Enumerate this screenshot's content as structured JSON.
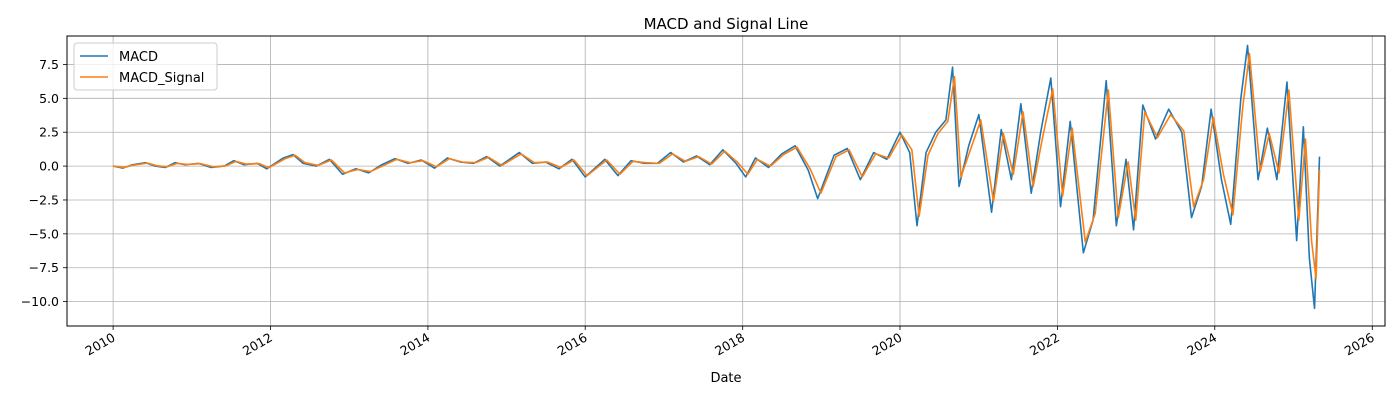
{
  "chart_data": {
    "type": "line",
    "title": "MACD and Signal Line",
    "xlabel": "Date",
    "ylabel": "",
    "xlim": [
      "2009-06-01",
      "2026-03-01"
    ],
    "ylim": [
      -11.8,
      9.6
    ],
    "grid": true,
    "legend": "top-left",
    "x_ticks": [
      "2010",
      "2012",
      "2014",
      "2016",
      "2018",
      "2020",
      "2022",
      "2024",
      "2026"
    ],
    "y_ticks": [
      7.5,
      5.0,
      2.5,
      0.0,
      -2.5,
      -5.0,
      -7.5,
      -10.0
    ],
    "y_tick_labels": [
      "7.5",
      "5.0",
      "2.5",
      "0.0",
      "−2.5",
      "−5.0",
      "−7.5",
      "−10.0"
    ],
    "series": [
      {
        "name": "MACD",
        "color": "#1f77b4",
        "points": [
          [
            "2010-01-01",
            0.0
          ],
          [
            "2010-02-15",
            -0.15
          ],
          [
            "2010-04-01",
            0.1
          ],
          [
            "2010-06-01",
            0.25
          ],
          [
            "2010-07-15",
            0.0
          ],
          [
            "2010-09-01",
            -0.1
          ],
          [
            "2010-10-15",
            0.25
          ],
          [
            "2010-12-01",
            0.1
          ],
          [
            "2011-02-01",
            0.2
          ],
          [
            "2011-04-01",
            -0.1
          ],
          [
            "2011-06-01",
            0.0
          ],
          [
            "2011-07-15",
            0.4
          ],
          [
            "2011-09-01",
            0.1
          ],
          [
            "2011-11-01",
            0.2
          ],
          [
            "2011-12-15",
            -0.2
          ],
          [
            "2012-03-01",
            0.6
          ],
          [
            "2012-04-15",
            0.85
          ],
          [
            "2012-06-01",
            0.2
          ],
          [
            "2012-08-01",
            0.0
          ],
          [
            "2012-10-01",
            0.5
          ],
          [
            "2012-12-01",
            -0.6
          ],
          [
            "2013-02-01",
            -0.2
          ],
          [
            "2013-04-01",
            -0.5
          ],
          [
            "2013-06-01",
            0.1
          ],
          [
            "2013-08-01",
            0.55
          ],
          [
            "2013-10-01",
            0.2
          ],
          [
            "2013-12-01",
            0.45
          ],
          [
            "2014-02-01",
            -0.15
          ],
          [
            "2014-04-01",
            0.6
          ],
          [
            "2014-06-01",
            0.3
          ],
          [
            "2014-08-01",
            0.2
          ],
          [
            "2014-10-01",
            0.7
          ],
          [
            "2014-12-01",
            0.0
          ],
          [
            "2015-03-01",
            1.0
          ],
          [
            "2015-05-01",
            0.2
          ],
          [
            "2015-07-01",
            0.3
          ],
          [
            "2015-09-01",
            -0.2
          ],
          [
            "2015-11-01",
            0.5
          ],
          [
            "2016-01-01",
            -0.8
          ],
          [
            "2016-04-01",
            0.5
          ],
          [
            "2016-06-01",
            -0.7
          ],
          [
            "2016-08-01",
            0.4
          ],
          [
            "2016-10-01",
            0.2
          ],
          [
            "2016-12-01",
            0.2
          ],
          [
            "2017-02-01",
            1.0
          ],
          [
            "2017-04-01",
            0.3
          ],
          [
            "2017-06-01",
            0.75
          ],
          [
            "2017-08-01",
            0.1
          ],
          [
            "2017-10-01",
            1.2
          ],
          [
            "2017-12-01",
            0.2
          ],
          [
            "2018-01-15",
            -0.8
          ],
          [
            "2018-03-01",
            0.6
          ],
          [
            "2018-05-01",
            -0.1
          ],
          [
            "2018-07-01",
            0.9
          ],
          [
            "2018-09-01",
            1.5
          ],
          [
            "2018-11-01",
            -0.3
          ],
          [
            "2018-12-15",
            -2.4
          ],
          [
            "2019-03-01",
            0.8
          ],
          [
            "2019-05-01",
            1.3
          ],
          [
            "2019-07-01",
            -1.0
          ],
          [
            "2019-09-01",
            1.0
          ],
          [
            "2019-11-01",
            0.5
          ],
          [
            "2020-01-01",
            2.5
          ],
          [
            "2020-02-15",
            1.0
          ],
          [
            "2020-03-20",
            -4.4
          ],
          [
            "2020-05-01",
            1.0
          ],
          [
            "2020-06-15",
            2.5
          ],
          [
            "2020-08-01",
            3.4
          ],
          [
            "2020-09-01",
            7.3
          ],
          [
            "2020-10-01",
            -1.5
          ],
          [
            "2020-11-15",
            1.5
          ],
          [
            "2021-01-01",
            3.8
          ],
          [
            "2021-03-01",
            -3.4
          ],
          [
            "2021-04-15",
            2.7
          ],
          [
            "2021-06-01",
            -1.0
          ],
          [
            "2021-07-15",
            4.6
          ],
          [
            "2021-09-01",
            -2.0
          ],
          [
            "2021-10-15",
            2.5
          ],
          [
            "2021-12-01",
            6.5
          ],
          [
            "2022-01-15",
            -3.0
          ],
          [
            "2022-03-01",
            3.3
          ],
          [
            "2022-05-01",
            -6.4
          ],
          [
            "2022-06-15",
            -4.0
          ],
          [
            "2022-08-15",
            6.3
          ],
          [
            "2022-10-01",
            -4.4
          ],
          [
            "2022-11-15",
            0.5
          ],
          [
            "2022-12-20",
            -4.7
          ],
          [
            "2023-02-01",
            4.5
          ],
          [
            "2023-04-01",
            2.0
          ],
          [
            "2023-06-01",
            4.2
          ],
          [
            "2023-08-01",
            2.5
          ],
          [
            "2023-09-15",
            -3.8
          ],
          [
            "2023-11-01",
            -1.5
          ],
          [
            "2023-12-15",
            4.2
          ],
          [
            "2024-02-01",
            -1.0
          ],
          [
            "2024-03-15",
            -4.3
          ],
          [
            "2024-05-01",
            5.0
          ],
          [
            "2024-06-01",
            8.9
          ],
          [
            "2024-07-20",
            -1.0
          ],
          [
            "2024-09-01",
            2.8
          ],
          [
            "2024-10-15",
            -1.0
          ],
          [
            "2024-12-01",
            6.2
          ],
          [
            "2025-01-15",
            -5.5
          ],
          [
            "2025-02-15",
            2.9
          ],
          [
            "2025-03-15",
            -6.8
          ],
          [
            "2025-04-08",
            -10.5
          ],
          [
            "2025-05-01",
            0.7
          ]
        ]
      },
      {
        "name": "MACD_Signal",
        "color": "#ff7f0e",
        "points": [
          [
            "2010-01-01",
            0.0
          ],
          [
            "2010-02-20",
            -0.1
          ],
          [
            "2010-04-10",
            0.08
          ],
          [
            "2010-06-10",
            0.22
          ],
          [
            "2010-07-25",
            0.02
          ],
          [
            "2010-09-10",
            -0.05
          ],
          [
            "2010-10-25",
            0.2
          ],
          [
            "2010-12-10",
            0.12
          ],
          [
            "2011-02-10",
            0.18
          ],
          [
            "2011-04-10",
            -0.05
          ],
          [
            "2011-06-10",
            0.02
          ],
          [
            "2011-07-25",
            0.35
          ],
          [
            "2011-09-10",
            0.15
          ],
          [
            "2011-11-10",
            0.18
          ],
          [
            "2011-12-25",
            -0.12
          ],
          [
            "2012-03-10",
            0.55
          ],
          [
            "2012-04-25",
            0.8
          ],
          [
            "2012-06-10",
            0.25
          ],
          [
            "2012-08-10",
            0.05
          ],
          [
            "2012-10-10",
            0.45
          ],
          [
            "2012-12-10",
            -0.5
          ],
          [
            "2013-02-10",
            -0.25
          ],
          [
            "2013-04-10",
            -0.4
          ],
          [
            "2013-06-10",
            0.05
          ],
          [
            "2013-08-10",
            0.5
          ],
          [
            "2013-10-10",
            0.25
          ],
          [
            "2013-12-10",
            0.4
          ],
          [
            "2014-02-10",
            -0.05
          ],
          [
            "2014-04-10",
            0.55
          ],
          [
            "2014-06-10",
            0.3
          ],
          [
            "2014-08-10",
            0.25
          ],
          [
            "2014-10-10",
            0.65
          ],
          [
            "2014-12-10",
            0.05
          ],
          [
            "2015-03-10",
            0.9
          ],
          [
            "2015-05-10",
            0.25
          ],
          [
            "2015-07-10",
            0.3
          ],
          [
            "2015-09-10",
            -0.1
          ],
          [
            "2015-11-10",
            0.45
          ],
          [
            "2016-01-10",
            -0.7
          ],
          [
            "2016-04-10",
            0.45
          ],
          [
            "2016-06-10",
            -0.6
          ],
          [
            "2016-08-10",
            0.35
          ],
          [
            "2016-10-10",
            0.25
          ],
          [
            "2016-12-10",
            0.2
          ],
          [
            "2017-02-10",
            0.9
          ],
          [
            "2017-04-10",
            0.35
          ],
          [
            "2017-06-10",
            0.7
          ],
          [
            "2017-08-10",
            0.15
          ],
          [
            "2017-10-10",
            1.1
          ],
          [
            "2017-12-10",
            0.25
          ],
          [
            "2018-01-25",
            -0.6
          ],
          [
            "2018-03-10",
            0.5
          ],
          [
            "2018-05-10",
            0.0
          ],
          [
            "2018-07-10",
            0.85
          ],
          [
            "2018-09-10",
            1.4
          ],
          [
            "2018-11-10",
            -0.2
          ],
          [
            "2018-12-30",
            -2.0
          ],
          [
            "2019-03-10",
            0.7
          ],
          [
            "2019-05-10",
            1.2
          ],
          [
            "2019-07-10",
            -0.8
          ],
          [
            "2019-09-10",
            0.9
          ],
          [
            "2019-11-10",
            0.6
          ],
          [
            "2020-01-10",
            2.3
          ],
          [
            "2020-02-25",
            1.2
          ],
          [
            "2020-03-30",
            -3.7
          ],
          [
            "2020-05-10",
            0.8
          ],
          [
            "2020-06-25",
            2.4
          ],
          [
            "2020-08-10",
            3.3
          ],
          [
            "2020-09-10",
            6.6
          ],
          [
            "2020-10-10",
            -0.8
          ],
          [
            "2020-11-25",
            1.3
          ],
          [
            "2021-01-10",
            3.4
          ],
          [
            "2021-03-10",
            -2.6
          ],
          [
            "2021-04-25",
            2.4
          ],
          [
            "2021-06-10",
            -0.6
          ],
          [
            "2021-07-25",
            4.0
          ],
          [
            "2021-09-10",
            -1.5
          ],
          [
            "2021-10-25",
            2.2
          ],
          [
            "2021-12-10",
            5.7
          ],
          [
            "2022-01-25",
            -2.2
          ],
          [
            "2022-03-10",
            2.8
          ],
          [
            "2022-05-10",
            -5.6
          ],
          [
            "2022-06-25",
            -3.5
          ],
          [
            "2022-08-25",
            5.6
          ],
          [
            "2022-10-10",
            -3.8
          ],
          [
            "2022-11-25",
            0.3
          ],
          [
            "2022-12-30",
            -4.0
          ],
          [
            "2023-02-10",
            4.0
          ],
          [
            "2023-04-10",
            2.1
          ],
          [
            "2023-06-10",
            3.8
          ],
          [
            "2023-08-10",
            2.6
          ],
          [
            "2023-09-25",
            -3.0
          ],
          [
            "2023-11-10",
            -1.0
          ],
          [
            "2023-12-25",
            3.6
          ],
          [
            "2024-02-10",
            -0.6
          ],
          [
            "2024-03-25",
            -3.6
          ],
          [
            "2024-05-10",
            4.4
          ],
          [
            "2024-06-10",
            8.3
          ],
          [
            "2024-07-30",
            -0.4
          ],
          [
            "2024-09-10",
            2.4
          ],
          [
            "2024-10-25",
            -0.5
          ],
          [
            "2024-12-10",
            5.6
          ],
          [
            "2025-01-25",
            -4.0
          ],
          [
            "2025-02-25",
            2.0
          ],
          [
            "2025-03-25",
            -5.5
          ],
          [
            "2025-04-15",
            -8.3
          ],
          [
            "2025-05-01",
            -0.3
          ]
        ]
      }
    ]
  }
}
